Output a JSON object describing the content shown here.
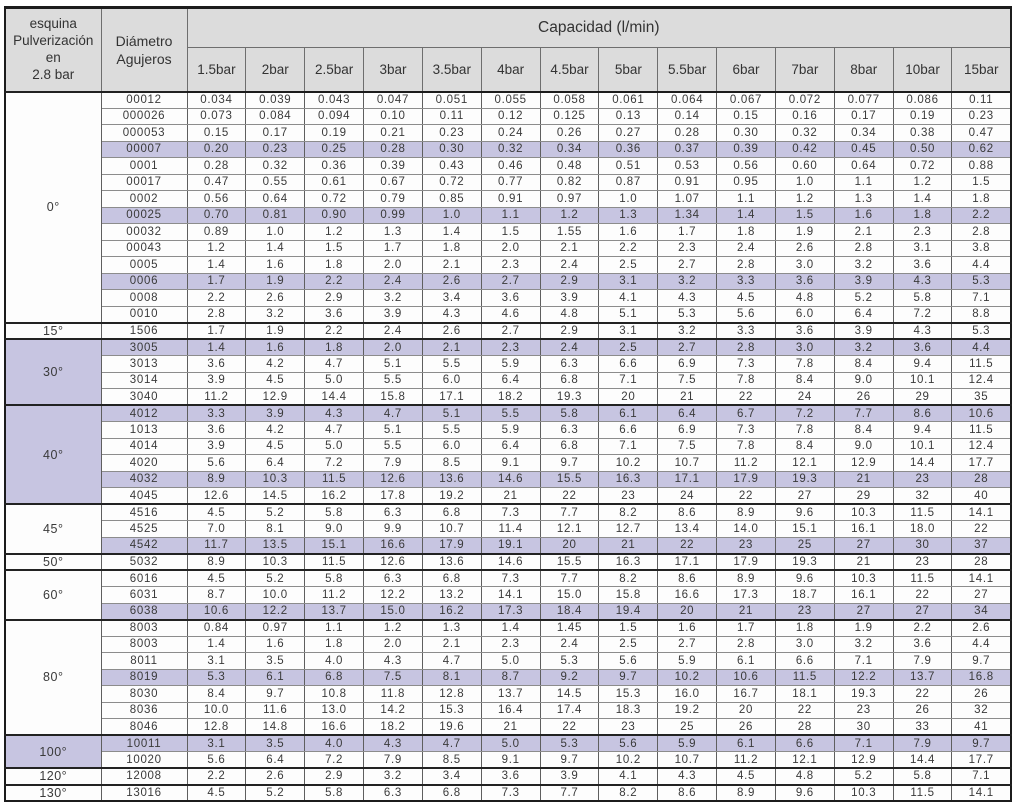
{
  "header": {
    "corner": "esquina\nPulverización\nen\n2.8 bar",
    "diameter": "Diámetro\nAgujeros",
    "capacity": "Capacidad (l/min)",
    "pressures": [
      "1.5bar",
      "2bar",
      "2.5bar",
      "3bar",
      "3.5bar",
      "4bar",
      "4.5bar",
      "5bar",
      "5.5bar",
      "6bar",
      "7bar",
      "8bar",
      "10bar",
      "15bar"
    ]
  },
  "colors": {
    "highlight": "#c7c5e1",
    "header_bg": "#dcdcdc",
    "grid": "#6e6e6e",
    "text": "#3a3a3a"
  },
  "sections": [
    {
      "angle": "0°",
      "rows": [
        {
          "diameter": "00012",
          "highlight": false,
          "values": [
            "0.034",
            "0.039",
            "0.043",
            "0.047",
            "0.051",
            "0.055",
            "0.058",
            "0.061",
            "0.064",
            "0.067",
            "0.072",
            "0.077",
            "0.086",
            "0.11"
          ]
        },
        {
          "diameter": "000026",
          "highlight": false,
          "values": [
            "0.073",
            "0.084",
            "0.094",
            "0.10",
            "0.11",
            "0.12",
            "0.125",
            "0.13",
            "0.14",
            "0.15",
            "0.16",
            "0.17",
            "0.19",
            "0.23"
          ]
        },
        {
          "diameter": "000053",
          "highlight": false,
          "values": [
            "0.15",
            "0.17",
            "0.19",
            "0.21",
            "0.23",
            "0.24",
            "0.26",
            "0.27",
            "0.28",
            "0.30",
            "0.32",
            "0.34",
            "0.38",
            "0.47"
          ]
        },
        {
          "diameter": "00007",
          "highlight": true,
          "values": [
            "0.20",
            "0.23",
            "0.25",
            "0.28",
            "0.30",
            "0.32",
            "0.34",
            "0.36",
            "0.37",
            "0.39",
            "0.42",
            "0.45",
            "0.50",
            "0.62"
          ]
        },
        {
          "diameter": "0001",
          "highlight": false,
          "values": [
            "0.28",
            "0.32",
            "0.36",
            "0.39",
            "0.43",
            "0.46",
            "0.48",
            "0.51",
            "0.53",
            "0.56",
            "0.60",
            "0.64",
            "0.72",
            "0.88"
          ]
        },
        {
          "diameter": "00017",
          "highlight": false,
          "values": [
            "0.47",
            "0.55",
            "0.61",
            "0.67",
            "0.72",
            "0.77",
            "0.82",
            "0.87",
            "0.91",
            "0.95",
            "1.0",
            "1.1",
            "1.2",
            "1.5"
          ]
        },
        {
          "diameter": "0002",
          "highlight": false,
          "values": [
            "0.56",
            "0.64",
            "0.72",
            "0.79",
            "0.85",
            "0.91",
            "0.97",
            "1.0",
            "1.07",
            "1.1",
            "1.2",
            "1.3",
            "1.4",
            "1.8"
          ]
        },
        {
          "diameter": "00025",
          "highlight": true,
          "values": [
            "0.70",
            "0.81",
            "0.90",
            "0.99",
            "1.0",
            "1.1",
            "1.2",
            "1.3",
            "1.34",
            "1.4",
            "1.5",
            "1.6",
            "1.8",
            "2.2"
          ]
        },
        {
          "diameter": "00032",
          "highlight": false,
          "values": [
            "0.89",
            "1.0",
            "1.2",
            "1.3",
            "1.4",
            "1.5",
            "1.55",
            "1.6",
            "1.7",
            "1.8",
            "1.9",
            "2.1",
            "2.3",
            "2.8"
          ]
        },
        {
          "diameter": "00043",
          "highlight": false,
          "values": [
            "1.2",
            "1.4",
            "1.5",
            "1.7",
            "1.8",
            "2.0",
            "2.1",
            "2.2",
            "2.3",
            "2.4",
            "2.6",
            "2.8",
            "3.1",
            "3.8"
          ]
        },
        {
          "diameter": "0005",
          "highlight": false,
          "values": [
            "1.4",
            "1.6",
            "1.8",
            "2.0",
            "2.1",
            "2.3",
            "2.4",
            "2.5",
            "2.7",
            "2.8",
            "3.0",
            "3.2",
            "3.6",
            "4.4"
          ]
        },
        {
          "diameter": "0006",
          "highlight": true,
          "values": [
            "1.7",
            "1.9",
            "2.2",
            "2.4",
            "2.6",
            "2.7",
            "2.9",
            "3.1",
            "3.2",
            "3.3",
            "3.6",
            "3.9",
            "4.3",
            "5.3"
          ]
        },
        {
          "diameter": "0008",
          "highlight": false,
          "values": [
            "2.2",
            "2.6",
            "2.9",
            "3.2",
            "3.4",
            "3.6",
            "3.9",
            "4.1",
            "4.3",
            "4.5",
            "4.8",
            "5.2",
            "5.8",
            "7.1"
          ]
        },
        {
          "diameter": "0010",
          "highlight": false,
          "values": [
            "2.8",
            "3.2",
            "3.6",
            "3.9",
            "4.3",
            "4.6",
            "4.8",
            "5.1",
            "5.3",
            "5.6",
            "6.0",
            "6.4",
            "7.2",
            "8.8"
          ]
        }
      ]
    },
    {
      "angle": "15°",
      "rows": [
        {
          "diameter": "1506",
          "highlight": false,
          "values": [
            "1.7",
            "1.9",
            "2.2",
            "2.4",
            "2.6",
            "2.7",
            "2.9",
            "3.1",
            "3.2",
            "3.3",
            "3.6",
            "3.9",
            "4.3",
            "5.3"
          ]
        }
      ]
    },
    {
      "angle": "30°",
      "rows": [
        {
          "diameter": "3005",
          "highlight": true,
          "values": [
            "1.4",
            "1.6",
            "1.8",
            "2.0",
            "2.1",
            "2.3",
            "2.4",
            "2.5",
            "2.7",
            "2.8",
            "3.0",
            "3.2",
            "3.6",
            "4.4"
          ]
        },
        {
          "diameter": "3013",
          "highlight": false,
          "values": [
            "3.6",
            "4.2",
            "4.7",
            "5.1",
            "5.5",
            "5.9",
            "6.3",
            "6.6",
            "6.9",
            "7.3",
            "7.8",
            "8.4",
            "9.4",
            "11.5"
          ]
        },
        {
          "diameter": "3014",
          "highlight": false,
          "values": [
            "3.9",
            "4.5",
            "5.0",
            "5.5",
            "6.0",
            "6.4",
            "6.8",
            "7.1",
            "7.5",
            "7.8",
            "8.4",
            "9.0",
            "10.1",
            "12.4"
          ]
        },
        {
          "diameter": "3040",
          "highlight": false,
          "values": [
            "11.2",
            "12.9",
            "14.4",
            "15.8",
            "17.1",
            "18.2",
            "19.3",
            "20",
            "21",
            "22",
            "24",
            "26",
            "29",
            "35"
          ]
        }
      ]
    },
    {
      "angle": "40°",
      "rows": [
        {
          "diameter": "4012",
          "highlight": true,
          "values": [
            "3.3",
            "3.9",
            "4.3",
            "4.7",
            "5.1",
            "5.5",
            "5.8",
            "6.1",
            "6.4",
            "6.7",
            "7.2",
            "7.7",
            "8.6",
            "10.6"
          ]
        },
        {
          "diameter": "1013",
          "highlight": false,
          "values": [
            "3.6",
            "4.2",
            "4.7",
            "5.1",
            "5.5",
            "5.9",
            "6.3",
            "6.6",
            "6.9",
            "7.3",
            "7.8",
            "8.4",
            "9.4",
            "11.5"
          ]
        },
        {
          "diameter": "4014",
          "highlight": false,
          "values": [
            "3.9",
            "4.5",
            "5.0",
            "5.5",
            "6.0",
            "6.4",
            "6.8",
            "7.1",
            "7.5",
            "7.8",
            "8.4",
            "9.0",
            "10.1",
            "12.4"
          ]
        },
        {
          "diameter": "4020",
          "highlight": false,
          "values": [
            "5.6",
            "6.4",
            "7.2",
            "7.9",
            "8.5",
            "9.1",
            "9.7",
            "10.2",
            "10.7",
            "11.2",
            "12.1",
            "12.9",
            "14.4",
            "17.7"
          ]
        },
        {
          "diameter": "4032",
          "highlight": true,
          "values": [
            "8.9",
            "10.3",
            "11.5",
            "12.6",
            "13.6",
            "14.6",
            "15.5",
            "16.3",
            "17.1",
            "17.9",
            "19.3",
            "21",
            "23",
            "28"
          ]
        },
        {
          "diameter": "4045",
          "highlight": false,
          "values": [
            "12.6",
            "14.5",
            "16.2",
            "17.8",
            "19.2",
            "21",
            "22",
            "23",
            "24",
            "22",
            "27",
            "29",
            "32",
            "40"
          ]
        }
      ]
    },
    {
      "angle": "45°",
      "rows": [
        {
          "diameter": "4516",
          "highlight": false,
          "values": [
            "4.5",
            "5.2",
            "5.8",
            "6.3",
            "6.8",
            "7.3",
            "7.7",
            "8.2",
            "8.6",
            "8.9",
            "9.6",
            "10.3",
            "11.5",
            "14.1"
          ]
        },
        {
          "diameter": "4525",
          "highlight": false,
          "values": [
            "7.0",
            "8.1",
            "9.0",
            "9.9",
            "10.7",
            "11.4",
            "12.1",
            "12.7",
            "13.4",
            "14.0",
            "15.1",
            "16.1",
            "18.0",
            "22"
          ]
        },
        {
          "diameter": "4542",
          "highlight": true,
          "values": [
            "11.7",
            "13.5",
            "15.1",
            "16.6",
            "17.9",
            "19.1",
            "20",
            "21",
            "22",
            "23",
            "25",
            "27",
            "30",
            "37"
          ]
        }
      ]
    },
    {
      "angle": "50°",
      "rows": [
        {
          "diameter": "5032",
          "highlight": false,
          "values": [
            "8.9",
            "10.3",
            "11.5",
            "12.6",
            "13.6",
            "14.6",
            "15.5",
            "16.3",
            "17.1",
            "17.9",
            "19.3",
            "21",
            "23",
            "28"
          ]
        }
      ]
    },
    {
      "angle": "60°",
      "rows": [
        {
          "diameter": "6016",
          "highlight": false,
          "values": [
            "4.5",
            "5.2",
            "5.8",
            "6.3",
            "6.8",
            "7.3",
            "7.7",
            "8.2",
            "8.6",
            "8.9",
            "9.6",
            "10.3",
            "11.5",
            "14.1"
          ]
        },
        {
          "diameter": "6031",
          "highlight": false,
          "values": [
            "8.7",
            "10.0",
            "11.2",
            "12.2",
            "13.2",
            "14.1",
            "15.0",
            "15.8",
            "16.6",
            "17.3",
            "18.7",
            "16.1",
            "22",
            "27"
          ]
        },
        {
          "diameter": "6038",
          "highlight": true,
          "values": [
            "10.6",
            "12.2",
            "13.7",
            "15.0",
            "16.2",
            "17.3",
            "18.4",
            "19.4",
            "20",
            "21",
            "23",
            "27",
            "27",
            "34"
          ]
        }
      ]
    },
    {
      "angle": "80°",
      "rows": [
        {
          "diameter": "8003",
          "highlight": false,
          "values": [
            "0.84",
            "0.97",
            "1.1",
            "1.2",
            "1.3",
            "1.4",
            "1.45",
            "1.5",
            "1.6",
            "1.7",
            "1.8",
            "1.9",
            "2.2",
            "2.6"
          ]
        },
        {
          "diameter": "8003",
          "highlight": false,
          "values": [
            "1.4",
            "1.6",
            "1.8",
            "2.0",
            "2.1",
            "2.3",
            "2.4",
            "2.5",
            "2.7",
            "2.8",
            "3.0",
            "3.2",
            "3.6",
            "4.4"
          ]
        },
        {
          "diameter": "8011",
          "highlight": false,
          "values": [
            "3.1",
            "3.5",
            "4.0",
            "4.3",
            "4.7",
            "5.0",
            "5.3",
            "5.6",
            "5.9",
            "6.1",
            "6.6",
            "7.1",
            "7.9",
            "9.7"
          ]
        },
        {
          "diameter": "8019",
          "highlight": true,
          "values": [
            "5.3",
            "6.1",
            "6.8",
            "7.5",
            "8.1",
            "8.7",
            "9.2",
            "9.7",
            "10.2",
            "10.6",
            "11.5",
            "12.2",
            "13.7",
            "16.8"
          ]
        },
        {
          "diameter": "8030",
          "highlight": false,
          "values": [
            "8.4",
            "9.7",
            "10.8",
            "11.8",
            "12.8",
            "13.7",
            "14.5",
            "15.3",
            "16.0",
            "16.7",
            "18.1",
            "19.3",
            "22",
            "26"
          ]
        },
        {
          "diameter": "8036",
          "highlight": false,
          "values": [
            "10.0",
            "11.6",
            "13.0",
            "14.2",
            "15.3",
            "16.4",
            "17.4",
            "18.3",
            "19.2",
            "20",
            "22",
            "23",
            "26",
            "32"
          ]
        },
        {
          "diameter": "8046",
          "highlight": false,
          "values": [
            "12.8",
            "14.8",
            "16.6",
            "18.2",
            "19.6",
            "21",
            "22",
            "23",
            "25",
            "26",
            "28",
            "30",
            "33",
            "41"
          ]
        }
      ]
    },
    {
      "angle": "100°",
      "rows": [
        {
          "diameter": "10011",
          "highlight": true,
          "values": [
            "3.1",
            "3.5",
            "4.0",
            "4.3",
            "4.7",
            "5.0",
            "5.3",
            "5.6",
            "5.9",
            "6.1",
            "6.6",
            "7.1",
            "7.9",
            "9.7"
          ]
        },
        {
          "diameter": "10020",
          "highlight": false,
          "values": [
            "5.6",
            "6.4",
            "7.2",
            "7.9",
            "8.5",
            "9.1",
            "9.7",
            "10.2",
            "10.7",
            "11.2",
            "12.1",
            "12.9",
            "14.4",
            "17.7"
          ]
        }
      ]
    },
    {
      "angle": "120°",
      "rows": [
        {
          "diameter": "12008",
          "highlight": false,
          "values": [
            "2.2",
            "2.6",
            "2.9",
            "3.2",
            "3.4",
            "3.6",
            "3.9",
            "4.1",
            "4.3",
            "4.5",
            "4.8",
            "5.2",
            "5.8",
            "7.1"
          ]
        }
      ]
    },
    {
      "angle": "130°",
      "rows": [
        {
          "diameter": "13016",
          "highlight": false,
          "values": [
            "4.5",
            "5.2",
            "5.8",
            "6.3",
            "6.8",
            "7.3",
            "7.7",
            "8.2",
            "8.6",
            "8.9",
            "9.6",
            "10.3",
            "11.5",
            "14.1"
          ]
        }
      ]
    }
  ]
}
